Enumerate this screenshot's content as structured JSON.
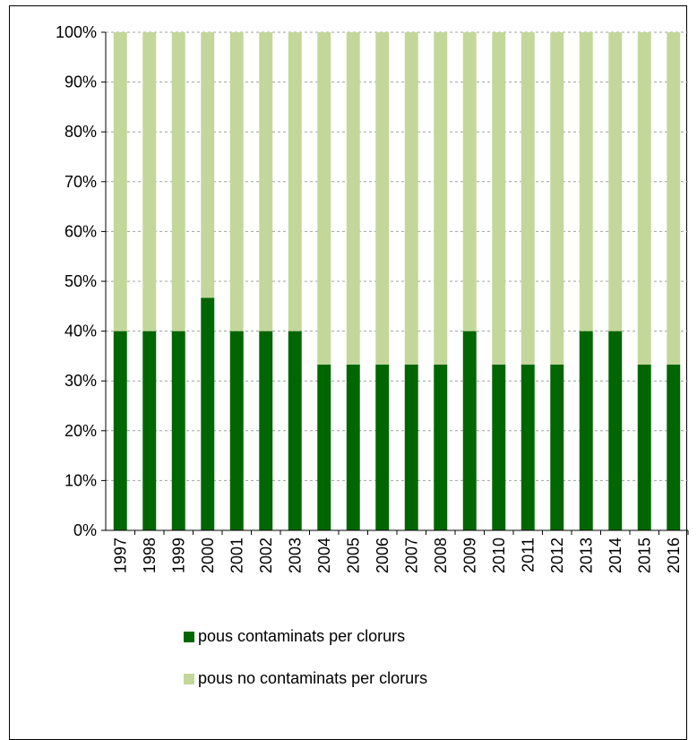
{
  "chart_data": {
    "type": "bar",
    "stacked": true,
    "percent": true,
    "categories": [
      "1997",
      "1998",
      "1999",
      "2000",
      "2001",
      "2002",
      "2003",
      "2004",
      "2005",
      "2006",
      "2007",
      "2008",
      "2009",
      "2010",
      "2011",
      "2012",
      "2013",
      "2014",
      "2015",
      "2016"
    ],
    "series": [
      {
        "name": "pous contaminats per clorurs",
        "color": "#006600",
        "values": [
          40,
          40,
          40,
          46.7,
          40,
          40,
          40,
          33.3,
          33.3,
          33.3,
          33.3,
          33.3,
          40,
          33.3,
          33.3,
          33.3,
          40,
          40,
          33.3,
          33.3
        ]
      },
      {
        "name": "pous no contaminats per clorurs",
        "color": "#c4d79b",
        "values": [
          60,
          60,
          60,
          53.3,
          60,
          60,
          60,
          66.7,
          66.7,
          66.7,
          66.7,
          66.7,
          60,
          66.7,
          66.7,
          66.7,
          60,
          60,
          66.7,
          66.7
        ]
      }
    ],
    "yticks": [
      "0%",
      "10%",
      "20%",
      "30%",
      "40%",
      "50%",
      "60%",
      "70%",
      "80%",
      "90%",
      "100%"
    ],
    "ylim": [
      0,
      100
    ],
    "grid": true,
    "legend_position": "bottom"
  }
}
